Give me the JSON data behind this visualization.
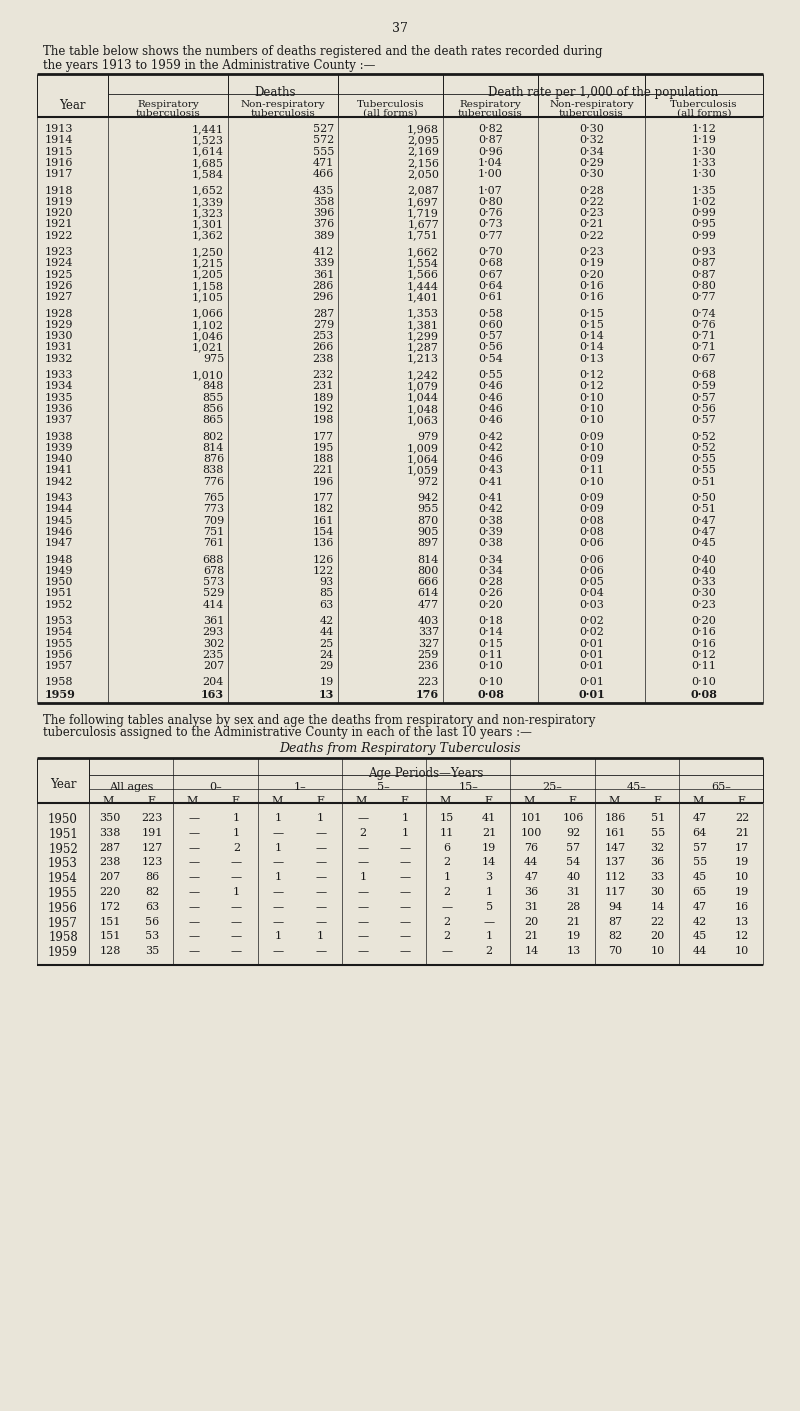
{
  "page_number": "37",
  "intro_text_1": "The table below shows the numbers of deaths registered and the death rates recorded during",
  "intro_text_2": "the years 1913 to 1959 in the Administrative County :—",
  "bg_color": "#e9e5d9",
  "table1_data": [
    [
      "1913",
      "1,441",
      "527",
      "1,968",
      "0·82",
      "0·30",
      "1·12"
    ],
    [
      "1914",
      "1,523",
      "572",
      "2,095",
      "0·87",
      "0·32",
      "1·19"
    ],
    [
      "1915",
      "1,614",
      "555",
      "2,169",
      "0·96",
      "0·34",
      "1·30"
    ],
    [
      "1916",
      "1,685",
      "471",
      "2,156",
      "1·04",
      "0·29",
      "1·33"
    ],
    [
      "1917",
      "1,584",
      "466",
      "2,050",
      "1·00",
      "0·30",
      "1·30"
    ],
    [
      "1918",
      "1,652",
      "435",
      "2,087",
      "1·07",
      "0·28",
      "1·35"
    ],
    [
      "1919",
      "1,339",
      "358",
      "1,697",
      "0·80",
      "0·22",
      "1·02"
    ],
    [
      "1920",
      "1,323",
      "396",
      "1,719",
      "0·76",
      "0·23",
      "0·99"
    ],
    [
      "1921",
      "1,301",
      "376",
      "1,677",
      "0·73",
      "0·21",
      "0·95"
    ],
    [
      "1922",
      "1,362",
      "389",
      "1,751",
      "0·77",
      "0·22",
      "0·99"
    ],
    [
      "1923",
      "1,250",
      "412",
      "1,662",
      "0·70",
      "0·23",
      "0·93"
    ],
    [
      "1924",
      "1,215",
      "339",
      "1,554",
      "0·68",
      "0·19",
      "0·87"
    ],
    [
      "1925",
      "1,205",
      "361",
      "1,566",
      "0·67",
      "0·20",
      "0·87"
    ],
    [
      "1926",
      "1,158",
      "286",
      "1,444",
      "0·64",
      "0·16",
      "0·80"
    ],
    [
      "1927",
      "1,105",
      "296",
      "1,401",
      "0·61",
      "0·16",
      "0·77"
    ],
    [
      "1928",
      "1,066",
      "287",
      "1,353",
      "0·58",
      "0·15",
      "0·74"
    ],
    [
      "1929",
      "1,102",
      "279",
      "1,381",
      "0·60",
      "0·15",
      "0·76"
    ],
    [
      "1930",
      "1,046",
      "253",
      "1,299",
      "0·57",
      "0·14",
      "0·71"
    ],
    [
      "1931",
      "1,021",
      "266",
      "1,287",
      "0·56",
      "0·14",
      "0·71"
    ],
    [
      "1932",
      "975",
      "238",
      "1,213",
      "0·54",
      "0·13",
      "0·67"
    ],
    [
      "1933",
      "1,010",
      "232",
      "1,242",
      "0·55",
      "0·12",
      "0·68"
    ],
    [
      "1934",
      "848",
      "231",
      "1,079",
      "0·46",
      "0·12",
      "0·59"
    ],
    [
      "1935",
      "855",
      "189",
      "1,044",
      "0·46",
      "0·10",
      "0·57"
    ],
    [
      "1936",
      "856",
      "192",
      "1,048",
      "0·46",
      "0·10",
      "0·56"
    ],
    [
      "1937",
      "865",
      "198",
      "1,063",
      "0·46",
      "0·10",
      "0·57"
    ],
    [
      "1938",
      "802",
      "177",
      "979",
      "0·42",
      "0·09",
      "0·52"
    ],
    [
      "1939",
      "814",
      "195",
      "1,009",
      "0·42",
      "0·10",
      "0·52"
    ],
    [
      "1940",
      "876",
      "188",
      "1,064",
      "0·46",
      "0·09",
      "0·55"
    ],
    [
      "1941",
      "838",
      "221",
      "1,059",
      "0·43",
      "0·11",
      "0·55"
    ],
    [
      "1942",
      "776",
      "196",
      "972",
      "0·41",
      "0·10",
      "0·51"
    ],
    [
      "1943",
      "765",
      "177",
      "942",
      "0·41",
      "0·09",
      "0·50"
    ],
    [
      "1944",
      "773",
      "182",
      "955",
      "0·42",
      "0·09",
      "0·51"
    ],
    [
      "1945",
      "709",
      "161",
      "870",
      "0·38",
      "0·08",
      "0·47"
    ],
    [
      "1946",
      "751",
      "154",
      "905",
      "0·39",
      "0·08",
      "0·47"
    ],
    [
      "1947",
      "761",
      "136",
      "897",
      "0·38",
      "0·06",
      "0·45"
    ],
    [
      "1948",
      "688",
      "126",
      "814",
      "0·34",
      "0·06",
      "0·40"
    ],
    [
      "1949",
      "678",
      "122",
      "800",
      "0·34",
      "0·06",
      "0·40"
    ],
    [
      "1950",
      "573",
      "93",
      "666",
      "0·28",
      "0·05",
      "0·33"
    ],
    [
      "1951",
      "529",
      "85",
      "614",
      "0·26",
      "0·04",
      "0·30"
    ],
    [
      "1952",
      "414",
      "63",
      "477",
      "0·20",
      "0·03",
      "0·23"
    ],
    [
      "1953",
      "361",
      "42",
      "403",
      "0·18",
      "0·02",
      "0·20"
    ],
    [
      "1954",
      "293",
      "44",
      "337",
      "0·14",
      "0·02",
      "0·16"
    ],
    [
      "1955",
      "302",
      "25",
      "327",
      "0·15",
      "0·01",
      "0·16"
    ],
    [
      "1956",
      "235",
      "24",
      "259",
      "0·11",
      "0·01",
      "0·12"
    ],
    [
      "1957",
      "207",
      "29",
      "236",
      "0·10",
      "0·01",
      "0·11"
    ],
    [
      "1958",
      "204",
      "19",
      "223",
      "0·10",
      "0·01",
      "0·10"
    ],
    [
      "1959",
      "163",
      "13",
      "176",
      "0·08",
      "0·01",
      "0·08"
    ]
  ],
  "table2_text_1": "The following tables analyse by sex and age the deaths from respiratory and non-respiratory",
  "table2_text_2": "tuberculosis assigned to the Administrative County in each of the last 10 years :—",
  "table2_title": "Deaths from Respiratory Tuberculosis",
  "table2_data": [
    [
      "1950",
      "350",
      "223",
      "—",
      "1",
      "1",
      "1",
      "—",
      "1",
      "15",
      "41",
      "101",
      "106",
      "186",
      "51",
      "47",
      "22"
    ],
    [
      "1951",
      "338",
      "191",
      "—",
      "1",
      "—",
      "—",
      "2",
      "1",
      "11",
      "21",
      "100",
      "92",
      "161",
      "55",
      "64",
      "21"
    ],
    [
      "1952",
      "287",
      "127",
      "—",
      "2",
      "1",
      "—",
      "—",
      "—",
      "6",
      "19",
      "76",
      "57",
      "147",
      "32",
      "57",
      "17"
    ],
    [
      "1953",
      "238",
      "123",
      "—",
      "—",
      "—",
      "—",
      "—",
      "—",
      "2",
      "14",
      "44",
      "54",
      "137",
      "36",
      "55",
      "19"
    ],
    [
      "1954",
      "207",
      "86",
      "—",
      "—",
      "1",
      "—",
      "1",
      "—",
      "1",
      "3",
      "47",
      "40",
      "112",
      "33",
      "45",
      "10"
    ],
    [
      "1955",
      "220",
      "82",
      "—",
      "1",
      "—",
      "—",
      "—",
      "—",
      "2",
      "1",
      "36",
      "31",
      "117",
      "30",
      "65",
      "19"
    ],
    [
      "1956",
      "172",
      "63",
      "—",
      "—",
      "—",
      "—",
      "—",
      "—",
      "—",
      "5",
      "31",
      "28",
      "94",
      "14",
      "47",
      "16"
    ],
    [
      "1957",
      "151",
      "56",
      "—",
      "—",
      "—",
      "—",
      "—",
      "—",
      "2",
      "—",
      "20",
      "21",
      "87",
      "22",
      "42",
      "13"
    ],
    [
      "1958",
      "151",
      "53",
      "—",
      "—",
      "1",
      "1",
      "—",
      "—",
      "2",
      "1",
      "21",
      "19",
      "82",
      "20",
      "45",
      "12"
    ],
    [
      "1959",
      "128",
      "35",
      "—",
      "—",
      "—",
      "—",
      "—",
      "—",
      "—",
      "2",
      "14",
      "13",
      "70",
      "10",
      "44",
      "10"
    ]
  ]
}
